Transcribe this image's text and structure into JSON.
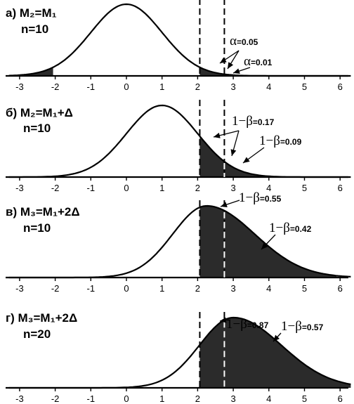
{
  "chart_data": [
    {
      "type": "area",
      "panel_label": "а)",
      "title_formula": "M₂=M₁",
      "n_label": "n=10",
      "distribution": "normal",
      "mean": 0,
      "sd": 1,
      "xlim": [
        -3.3,
        6.3
      ],
      "x_ticks": [
        "-3",
        "-2",
        "-1",
        "0",
        "1",
        "2",
        "3",
        "4",
        "5",
        "6"
      ],
      "critical_lines": [
        2.06,
        2.75
      ],
      "shaded_regions": [
        [
          -3.3,
          -2.06
        ],
        [
          2.06,
          4.0
        ]
      ],
      "annotations": [
        {
          "symbol": "α",
          "value": "=0.05"
        },
        {
          "symbol": "α",
          "value": "=0.01"
        }
      ]
    },
    {
      "type": "area",
      "panel_label": "б)",
      "title_formula": "M₂=M₁+Δ",
      "n_label": "n=10",
      "distribution": "normal",
      "mean": 1,
      "sd": 1,
      "xlim": [
        -3.3,
        6.3
      ],
      "x_ticks": [
        "-3",
        "-2",
        "-1",
        "0",
        "1",
        "2",
        "3",
        "4",
        "5",
        "6"
      ],
      "critical_lines": [
        2.06,
        2.75
      ],
      "shaded_regions": [
        [
          2.06,
          4.6
        ]
      ],
      "annotations": [
        {
          "symbol": "1−β",
          "value": "=0.17"
        },
        {
          "symbol": "1−β",
          "value": "=0.09"
        }
      ]
    },
    {
      "type": "area",
      "panel_label": "в)",
      "title_formula": "M₃=M₁+2Δ",
      "n_label": "n=10",
      "distribution": "skewed",
      "mode": 2.25,
      "xlim": [
        -3.3,
        6.3
      ],
      "x_ticks": [
        "-3",
        "-2",
        "-1",
        "0",
        "1",
        "2",
        "3",
        "4",
        "5",
        "6"
      ],
      "critical_lines": [
        2.06,
        2.75
      ],
      "shaded_regions": [
        [
          2.06,
          5.9
        ]
      ],
      "annotations": [
        {
          "symbol": "1−β",
          "value": "=0.55"
        },
        {
          "symbol": "1−β",
          "value": "=0.42"
        }
      ]
    },
    {
      "type": "area",
      "panel_label": "г)",
      "title_formula": "M₃=M₁+2Δ",
      "n_label": "n=20",
      "distribution": "skewed",
      "mode": 3.0,
      "xlim": [
        -3.3,
        6.3
      ],
      "x_ticks": [
        "-3",
        "-2",
        "-1",
        "0",
        "1",
        "2",
        "3",
        "4",
        "5",
        "6"
      ],
      "critical_lines": [
        2.06,
        2.75
      ],
      "shaded_regions": [
        [
          2.06,
          6.3
        ]
      ],
      "annotations": [
        {
          "symbol": "1−β",
          "value": "=0.87"
        },
        {
          "symbol": "1−β",
          "value": "=0.57"
        }
      ]
    }
  ]
}
